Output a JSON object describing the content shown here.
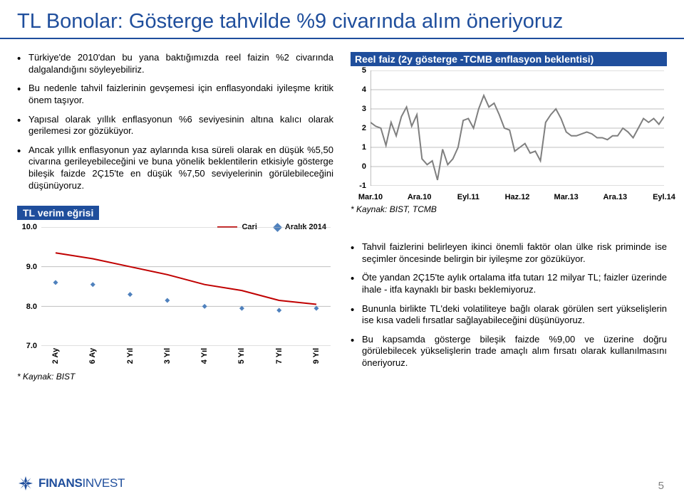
{
  "slide": {
    "title": "TL Bonolar: Gösterge tahvilde %9 civarında alım öneriyoruz",
    "page_number": "5"
  },
  "bullets_top_left": [
    "Türkiye'de 2010'dan bu yana baktığımızda reel faizin %2 civarında dalgalandığını söyleyebiliriz.",
    "Bu nedenle tahvil faizlerinin gevşemesi için enflasyondaki iyileşme kritik önem taşıyor.",
    "Yapısal olarak yıllık enflasyonun %6 seviyesinin altına kalıcı olarak gerilemesi zor gözüküyor.",
    "Ancak yıllık enflasyonun yaz aylarında kısa süreli olarak en düşük %5,50 civarına gerileyebileceğini ve buna yönelik beklentilerin etkisiyle gösterge bileşik faizde 2Ç15'te en düşük %7,50 seviyelerinin görülebileceğini düşünüyoruz."
  ],
  "bullets_bottom_right": [
    "Tahvil faizlerini belirleyen ikinci önemli faktör olan ülke risk priminde ise seçimler öncesinde belirgin bir iyileşme zor gözüküyor.",
    "Öte yandan 2Ç15'te aylık ortalama itfa tutarı 12 milyar TL; faizler üzerinde ihale - itfa kaynaklı bir baskı beklemiyoruz.",
    "Bununla birlikte TL'deki volatiliteye bağlı olarak görülen sert yükselişlerin ise kısa vadeli fırsatlar sağlayabileceğini düşünüyoruz.",
    "Bu kapsamda gösterge bileşik faizde %9,00 ve üzerine doğru görülebilecek yükselişlerin trade amaçlı alım fırsatı olarak kullanılmasını öneriyoruz."
  ],
  "chart1": {
    "title": "Reel faiz (2y gösterge -TCMB enflasyon beklentisi)",
    "source": "* Kaynak: BIST, TCMB",
    "ylim": [
      -1,
      5
    ],
    "yticks": [
      -1,
      0,
      1,
      2,
      3,
      4,
      5
    ],
    "x_labels": [
      "Mar.10",
      "Ara.10",
      "Eyl.11",
      "Haz.12",
      "Mar.13",
      "Ara.13",
      "Eyl.14"
    ],
    "line_color": "#7f7f7f",
    "line_width": 2,
    "grid_color": "#bfbfbf",
    "axis_color": "#808080",
    "background": "#ffffff",
    "tick_fontsize": 11,
    "title_fontsize": 14,
    "values": [
      2.3,
      2.1,
      2.0,
      1.1,
      2.3,
      1.6,
      2.6,
      3.1,
      2.1,
      2.7,
      0.4,
      0.1,
      0.3,
      -0.7,
      0.9,
      0.1,
      0.4,
      1.0,
      2.4,
      2.5,
      2.0,
      3.0,
      3.7,
      3.1,
      3.3,
      2.7,
      2.0,
      1.9,
      0.8,
      1.0,
      1.2,
      0.7,
      0.8,
      0.3,
      2.3,
      2.7,
      3.0,
      2.5,
      1.8,
      1.6,
      1.6,
      1.7,
      1.8,
      1.7,
      1.5,
      1.5,
      1.4,
      1.6,
      1.6,
      2.0,
      1.8,
      1.5,
      2.0,
      2.5,
      2.3,
      2.5,
      2.2,
      2.6
    ]
  },
  "chart2": {
    "title": "TL verim eğrisi",
    "source": "* Kaynak: BIST",
    "ylim": [
      7.0,
      10.0
    ],
    "yticks": [
      7.0,
      8.0,
      9.0,
      10.0
    ],
    "x_labels": [
      "2 Ay",
      "6 Ay",
      "2 Yıl",
      "3 Yıl",
      "4 Yıl",
      "5 Yıl",
      "7 Yıl",
      "9 Yıl"
    ],
    "legend": [
      {
        "label": "Cari",
        "color": "#c00000",
        "type": "line"
      },
      {
        "label": "Aralık 2014",
        "color": "#4f81bd",
        "type": "diamond"
      }
    ],
    "grid_color": "#bfbfbf",
    "line_width": 2,
    "marker_size": 7,
    "background": "#ffffff",
    "tick_fontsize": 11,
    "title_fontsize": 14,
    "series_cari": [
      9.35,
      9.2,
      9.0,
      8.8,
      8.55,
      8.4,
      8.15,
      8.05
    ],
    "series_aralik": [
      8.6,
      8.55,
      8.3,
      8.15,
      8.0,
      7.95,
      7.9,
      7.95
    ]
  },
  "logo": {
    "brand1": "FINANS",
    "brand2": "INVEST",
    "color": "#1f4e9c"
  }
}
